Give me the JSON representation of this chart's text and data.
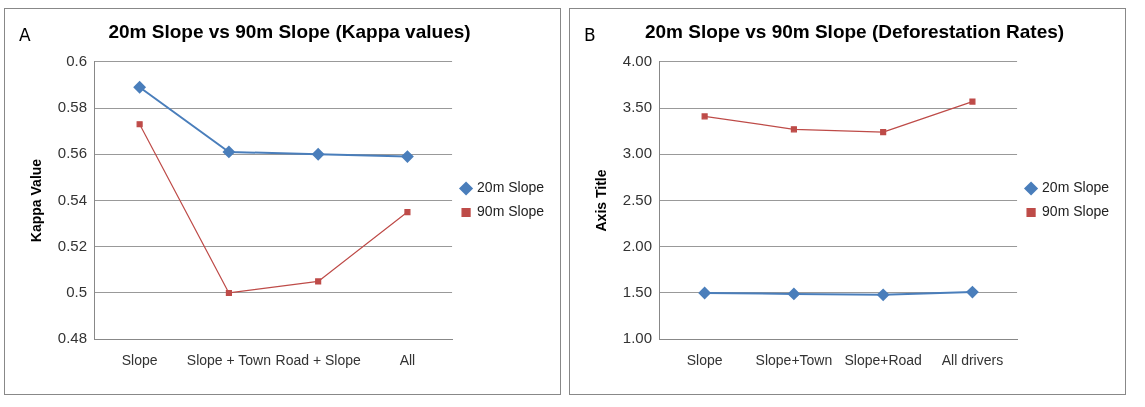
{
  "chart_data": [
    {
      "type": "line",
      "title": "20m Slope vs 90m Slope (Kappa values)",
      "ylabel": "Kappa Value",
      "annotations": [
        "A"
      ],
      "categories": [
        "Slope",
        "Slope + Town",
        "Road + Slope",
        "All"
      ],
      "series": [
        {
          "name": "20m Slope",
          "color": "#4a7ebb",
          "marker": "diamond",
          "values": [
            0.589,
            0.561,
            0.56,
            0.559
          ]
        },
        {
          "name": "90m Slope",
          "color": "#be4b48",
          "marker": "square",
          "values": [
            0.573,
            0.5,
            0.505,
            0.535
          ]
        }
      ],
      "ylim": [
        0.48,
        0.6
      ],
      "yticks": [
        0.48,
        0.5,
        0.52,
        0.54,
        0.56,
        0.58,
        0.6
      ],
      "grid": "y",
      "legend": "right"
    },
    {
      "type": "line",
      "title": "20m Slope vs 90m Slope (Deforestation Rates)",
      "ylabel": "Axis Title",
      "annotations": [
        "B"
      ],
      "categories": [
        "Slope",
        "Slope+Town",
        "Slope+Road",
        "All drivers"
      ],
      "series": [
        {
          "name": "20m Slope",
          "color": "#4a7ebb",
          "marker": "diamond",
          "values": [
            1.5,
            1.49,
            1.48,
            1.51
          ]
        },
        {
          "name": "90m Slope",
          "color": "#be4b48",
          "marker": "square",
          "values": [
            3.41,
            3.27,
            3.24,
            3.57
          ]
        }
      ],
      "ylim": [
        1,
        4
      ],
      "yticks": [
        {
          "value": 1,
          "label": "1.00"
        },
        {
          "value": 1.5,
          "label": "1.50"
        },
        {
          "value": 2,
          "label": "2.00"
        },
        {
          "value": 2.5,
          "label": "2.50"
        },
        {
          "value": 3,
          "label": "3.00"
        },
        {
          "value": 3.5,
          "label": "3.50"
        },
        {
          "value": 4,
          "label": "4.00"
        }
      ],
      "grid": "y",
      "legend": "right"
    }
  ]
}
